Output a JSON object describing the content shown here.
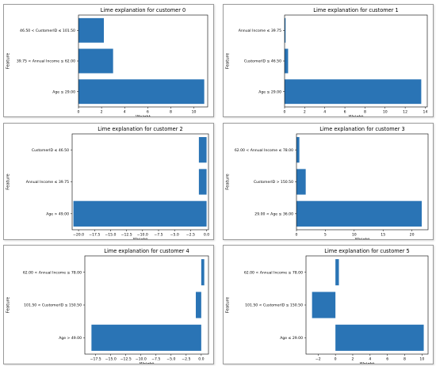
{
  "chart_data": [
    {
      "type": "bar",
      "orientation": "horizontal",
      "title": "Lime explanation for customer 0",
      "xlabel": "Weight",
      "ylabel": "Feature",
      "categories": [
        "Age  ≤  29.00",
        "39.75 < Annual Income  ≤  62.00",
        "46.50 < CustomerID  ≤  101.50"
      ],
      "values": [
        10.9,
        3.0,
        2.2
      ],
      "xlim": [
        0,
        11.2
      ],
      "xticks": [
        "0",
        "2",
        "4",
        "6",
        "8",
        "10"
      ],
      "color": "#2a74b5"
    },
    {
      "type": "bar",
      "orientation": "horizontal",
      "title": "Lime explanation for customer 1",
      "xlabel": "Weight",
      "ylabel": "Feature",
      "categories": [
        "Age  ≤  29.00",
        "CustomerID  ≤  46.50",
        "Annual Income  ≤  39.75"
      ],
      "values": [
        13.6,
        0.35,
        0.1
      ],
      "xlim": [
        0,
        14.2
      ],
      "xticks": [
        "0",
        "2",
        "4",
        "6",
        "8",
        "10",
        "12",
        "14"
      ],
      "color": "#2a74b5"
    },
    {
      "type": "bar",
      "orientation": "horizontal",
      "title": "Lime explanation for customer 2",
      "xlabel": "Weight",
      "ylabel": "Feature",
      "categories": [
        "Age > 49.00",
        "Annual Income  ≤  39.75",
        "CustomerID  ≤  46.50"
      ],
      "values": [
        -20.8,
        -1.2,
        -1.2
      ],
      "xlim": [
        -21.0,
        0.3
      ],
      "xticks": [
        "−20.0",
        "−17.5",
        "−15.0",
        "−12.5",
        "−10.0",
        "−7.5",
        "−5.0",
        "−2.5",
        "0.0"
      ],
      "color": "#2a74b5"
    },
    {
      "type": "bar",
      "orientation": "horizontal",
      "title": "Lime explanation for customer 3",
      "xlabel": "Weight",
      "ylabel": "Feature",
      "categories": [
        "29.00 < Age  ≤  36.00",
        "CustomerID > 150.50",
        "62.00 < Annual Income  ≤  78.00"
      ],
      "values": [
        21.7,
        1.6,
        0.5
      ],
      "xlim": [
        0,
        22.8
      ],
      "xticks": [
        "0",
        "5",
        "10",
        "15",
        "20"
      ],
      "color": "#2a74b5"
    },
    {
      "type": "bar",
      "orientation": "horizontal",
      "title": "Lime explanation for customer 4",
      "xlabel": "Weight",
      "ylabel": "Feature",
      "categories": [
        "Age > 49.00",
        "101.50 < CustomerID  ≤  150.50",
        "62.00 < Annual Income  ≤  78.00"
      ],
      "values": [
        -18.2,
        -0.9,
        0.5
      ],
      "xlim": [
        -19.3,
        1.2
      ],
      "xticks": [
        "−17.5",
        "−15.0",
        "−12.5",
        "−10.0",
        "−7.5",
        "−5.0",
        "−2.5",
        "0.0"
      ],
      "color": "#2a74b5"
    },
    {
      "type": "bar",
      "orientation": "horizontal",
      "title": "Lime explanation for customer 5",
      "xlabel": "Weight",
      "ylabel": "Feature",
      "categories": [
        "Age  ≤  29.00",
        "101.50 < CustomerID  ≤  150.50",
        "62.00 < Annual Income  ≤  78.00"
      ],
      "values": [
        10.2,
        -2.7,
        0.4
      ],
      "xlim": [
        -3.4,
        10.7
      ],
      "xticks": [
        "−2",
        "0",
        "2",
        "4",
        "6",
        "8",
        "10"
      ],
      "color": "#2a74b5"
    }
  ]
}
